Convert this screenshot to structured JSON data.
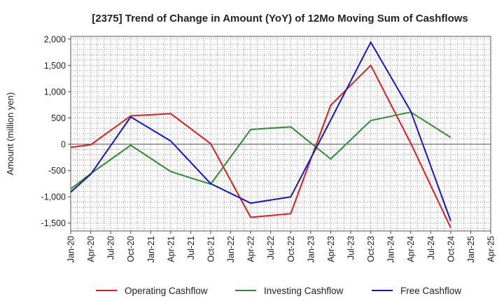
{
  "chart_data": {
    "type": "line",
    "title": "[2375]  Trend of Change in Amount (YoY) of 12Mo Moving Sum of Cashflows",
    "xlabel": "",
    "ylabel": "Amount (million yen)",
    "ylim": [
      -1650,
      2050
    ],
    "yticks": [
      2000,
      1500,
      1000,
      500,
      0,
      -500,
      -1000,
      -1500
    ],
    "ytick_labels": [
      "2,000",
      "1,500",
      "1,000",
      "500",
      "0",
      "-500",
      "-1,000",
      "-1,500"
    ],
    "categories": [
      "Jan-20",
      "Apr-20",
      "Jul-20",
      "Oct-20",
      "Jan-21",
      "Apr-21",
      "Jul-21",
      "Oct-21",
      "Jan-22",
      "Apr-22",
      "Jul-22",
      "Oct-22",
      "Jan-23",
      "Apr-23",
      "Jul-23",
      "Oct-23",
      "Jan-24",
      "Apr-24",
      "Jul-24",
      "Oct-24",
      "Jan-25",
      "Apr-25"
    ],
    "grid": true,
    "legend_position": "bottom",
    "series": [
      {
        "name": "Operating Cashflow",
        "color": "#e41a1c",
        "values": [
          -60,
          -10,
          null,
          540,
          null,
          580,
          null,
          10,
          null,
          -1390,
          null,
          -1320,
          null,
          740,
          null,
          1500,
          null,
          20,
          null,
          -1590,
          null,
          null
        ]
      },
      {
        "name": "Investing Cashflow",
        "color": "#2e8b2e",
        "values": [
          -850,
          -560,
          null,
          -20,
          null,
          -520,
          null,
          -760,
          null,
          280,
          null,
          330,
          null,
          -280,
          null,
          450,
          null,
          610,
          null,
          130,
          null,
          null
        ]
      },
      {
        "name": "Free Cashflow",
        "color": "#1414d4",
        "values": [
          -910,
          -570,
          null,
          520,
          null,
          60,
          null,
          -750,
          null,
          -1120,
          null,
          -1000,
          null,
          460,
          null,
          1940,
          null,
          630,
          null,
          -1460,
          null,
          null
        ]
      }
    ]
  }
}
